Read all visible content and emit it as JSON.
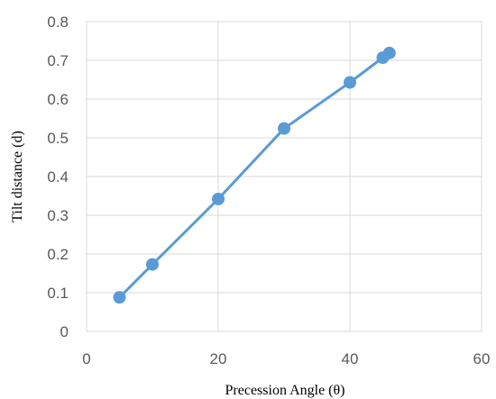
{
  "chart_data": {
    "type": "scatter",
    "xlabel": "Precession Angle (θ)",
    "ylabel": "Tilt distance (d)",
    "xlim": [
      0,
      60
    ],
    "ylim": [
      0,
      0.8
    ],
    "x_ticks": [
      0,
      20,
      40,
      60
    ],
    "y_ticks": [
      0,
      0.1,
      0.2,
      0.3,
      0.4,
      0.5,
      0.6,
      0.7,
      0.8
    ],
    "x_tick_labels": [
      "0",
      "20",
      "40",
      "60"
    ],
    "y_tick_labels": [
      "0",
      "0.1",
      "0.2",
      "0.3",
      "0.4",
      "0.5",
      "0.6",
      "0.7",
      "0.8"
    ],
    "grid": true,
    "legend": "none",
    "series": [
      {
        "color": "#5b9bd5",
        "x": [
          5,
          10,
          20,
          30,
          40,
          45,
          46
        ],
        "y": [
          0.088,
          0.173,
          0.342,
          0.524,
          0.643,
          0.707,
          0.719
        ]
      }
    ]
  }
}
